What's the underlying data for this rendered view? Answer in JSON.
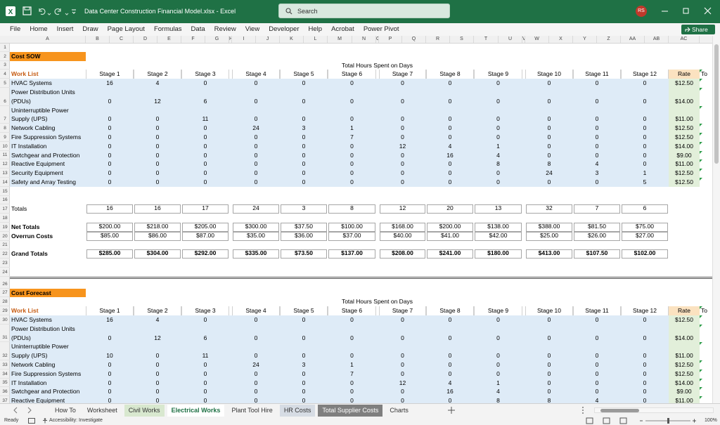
{
  "title_bar": {
    "file_name": "Data Center Construction Financial Model.xlsx - Excel",
    "search": "Search",
    "user_initials": "RS"
  },
  "ribbon": {
    "tabs": [
      "File",
      "Home",
      "Insert",
      "Draw",
      "Page Layout",
      "Formulas",
      "Data",
      "Review",
      "View",
      "Developer",
      "Help",
      "Acrobat",
      "Power Pivot"
    ],
    "share": "Share"
  },
  "sheet": {
    "columns": [
      "A",
      "B",
      "C",
      "D",
      "E",
      "F",
      "G",
      "H",
      "I",
      "J",
      "K",
      "L",
      "M",
      "N",
      "O",
      "P",
      "Q",
      "R",
      "S",
      "T",
      "U",
      "V",
      "W",
      "X",
      "Y",
      "Z",
      "AA",
      "AB",
      "AC"
    ],
    "row_numbers": [
      1,
      2,
      3,
      4,
      5,
      6,
      7,
      8,
      9,
      10,
      11,
      12,
      13,
      14,
      15,
      16,
      17,
      18,
      19,
      20,
      21,
      22,
      23,
      24,
      26,
      27,
      28,
      29,
      30,
      31,
      32,
      33,
      34,
      35,
      36,
      37
    ],
    "sections": [
      {
        "title": "Cost SOW",
        "caption": "Total Hours Spent on Days",
        "list_header": "Work List",
        "stages": [
          "Stage 1",
          "Stage 2",
          "Stage 3",
          "Stage 4",
          "Stage 5",
          "Stage 6",
          "Stage 7",
          "Stage 8",
          "Stage 9",
          "Stage 10",
          "Stage 11",
          "Stage 12"
        ],
        "rate_header": "Rate",
        "total_header": "To",
        "items": [
          {
            "name": "HVAC Systems",
            "hours": [
              16,
              4,
              0,
              0,
              0,
              0,
              0,
              0,
              0,
              0,
              0,
              0
            ],
            "rate": "$12.50"
          },
          {
            "name": "Power Distribution Units (PDUs)",
            "hours": [
              0,
              12,
              6,
              0,
              0,
              0,
              0,
              0,
              0,
              0,
              0,
              0
            ],
            "rate": "$14.00"
          },
          {
            "name": "Uninterruptible Power Supply (UPS)",
            "hours": [
              0,
              0,
              11,
              0,
              0,
              0,
              0,
              0,
              0,
              0,
              0,
              0
            ],
            "rate": "$11.00"
          },
          {
            "name": "Network Cabling",
            "hours": [
              0,
              0,
              0,
              24,
              3,
              1,
              0,
              0,
              0,
              0,
              0,
              0
            ],
            "rate": "$12.50"
          },
          {
            "name": "Fire Suppression Systems",
            "hours": [
              0,
              0,
              0,
              0,
              0,
              7,
              0,
              0,
              0,
              0,
              0,
              0
            ],
            "rate": "$12.50"
          },
          {
            "name": "IT Installation",
            "hours": [
              0,
              0,
              0,
              0,
              0,
              0,
              12,
              4,
              1,
              0,
              0,
              0
            ],
            "rate": "$14.00"
          },
          {
            "name": "Swtchgear and Protection",
            "hours": [
              0,
              0,
              0,
              0,
              0,
              0,
              0,
              16,
              4,
              0,
              0,
              0
            ],
            "rate": "$9.00"
          },
          {
            "name": "Reactive Equipment",
            "hours": [
              0,
              0,
              0,
              0,
              0,
              0,
              0,
              0,
              8,
              8,
              4,
              0
            ],
            "rate": "$11.00"
          },
          {
            "name": "Security Equipment",
            "hours": [
              0,
              0,
              0,
              0,
              0,
              0,
              0,
              0,
              0,
              24,
              3,
              1
            ],
            "rate": "$12.50"
          },
          {
            "name": "Safety and Array Testing",
            "hours": [
              0,
              0,
              0,
              0,
              0,
              0,
              0,
              0,
              0,
              0,
              0,
              5
            ],
            "rate": "$12.50"
          }
        ],
        "totals_label": "Totals",
        "totals": [
          16,
          16,
          17,
          24,
          3,
          8,
          12,
          20,
          13,
          32,
          7,
          6
        ],
        "net_totals_label": "Net Totals",
        "net_totals": [
          "$200.00",
          "$218.00",
          "$205.00",
          "$300.00",
          "$37.50",
          "$100.00",
          "$168.00",
          "$200.00",
          "$138.00",
          "$388.00",
          "$81.50",
          "$75.00"
        ],
        "overrun_label": "Overrun Costs",
        "overrun_costs": [
          "$85.00",
          "$86.00",
          "$87.00",
          "$35.00",
          "$36.00",
          "$37.00",
          "$40.00",
          "$41.00",
          "$42.00",
          "$25.00",
          "$26.00",
          "$27.00"
        ],
        "grand_totals_label": "Grand Totals",
        "grand_totals": [
          "$285.00",
          "$304.00",
          "$292.00",
          "$335.00",
          "$73.50",
          "$137.00",
          "$208.00",
          "$241.00",
          "$180.00",
          "$413.00",
          "$107.50",
          "$102.00"
        ]
      },
      {
        "title": "Cost Forecast",
        "caption": "Total Hours Spent on Days",
        "list_header": "Work List",
        "stages": [
          "Stage 1",
          "Stage 2",
          "Stage 3",
          "Stage 4",
          "Stage 5",
          "Stage 6",
          "Stage 7",
          "Stage 8",
          "Stage 9",
          "Stage 10",
          "Stage 11",
          "Stage 12"
        ],
        "rate_header": "Rate",
        "total_header": "To",
        "items": [
          {
            "name": "HVAC Systems",
            "hours": [
              16,
              4,
              0,
              0,
              0,
              0,
              0,
              0,
              0,
              0,
              0,
              0
            ],
            "rate": "$12.50"
          },
          {
            "name": "Power Distribution Units (PDUs)",
            "hours": [
              0,
              12,
              6,
              0,
              0,
              0,
              0,
              0,
              0,
              0,
              0,
              0
            ],
            "rate": "$14.00"
          },
          {
            "name": "Uninterruptible Power Supply (UPS)",
            "hours": [
              10,
              0,
              11,
              0,
              0,
              0,
              0,
              0,
              0,
              0,
              0,
              0
            ],
            "rate": "$11.00"
          },
          {
            "name": "Network Cabling",
            "hours": [
              0,
              0,
              0,
              24,
              3,
              1,
              0,
              0,
              0,
              0,
              0,
              0
            ],
            "rate": "$12.50"
          },
          {
            "name": "Fire Suppression Systems",
            "hours": [
              0,
              0,
              0,
              0,
              0,
              7,
              0,
              0,
              0,
              0,
              0,
              0
            ],
            "rate": "$12.50"
          },
          {
            "name": "IT Installation",
            "hours": [
              0,
              0,
              0,
              0,
              0,
              0,
              12,
              4,
              1,
              0,
              0,
              0
            ],
            "rate": "$14.00"
          },
          {
            "name": "Swtchgear and Protection",
            "hours": [
              0,
              0,
              0,
              0,
              0,
              0,
              0,
              16,
              4,
              0,
              0,
              0
            ],
            "rate": "$9.00"
          },
          {
            "name": "Reactive Equipment",
            "hours": [
              0,
              0,
              0,
              0,
              0,
              0,
              0,
              0,
              8,
              8,
              4,
              0
            ],
            "rate": "$11.00"
          }
        ]
      }
    ]
  },
  "sheet_tabs": [
    "How To",
    "Worksheet",
    "Civil Works",
    "Electrical Works",
    "Plant Tool Hire",
    "HR Costs",
    "Total Supplier Costs",
    "Charts"
  ],
  "status_bar": {
    "status": "Ready",
    "accessibility": "Accessibility: Investigate",
    "zoom": "100%"
  }
}
